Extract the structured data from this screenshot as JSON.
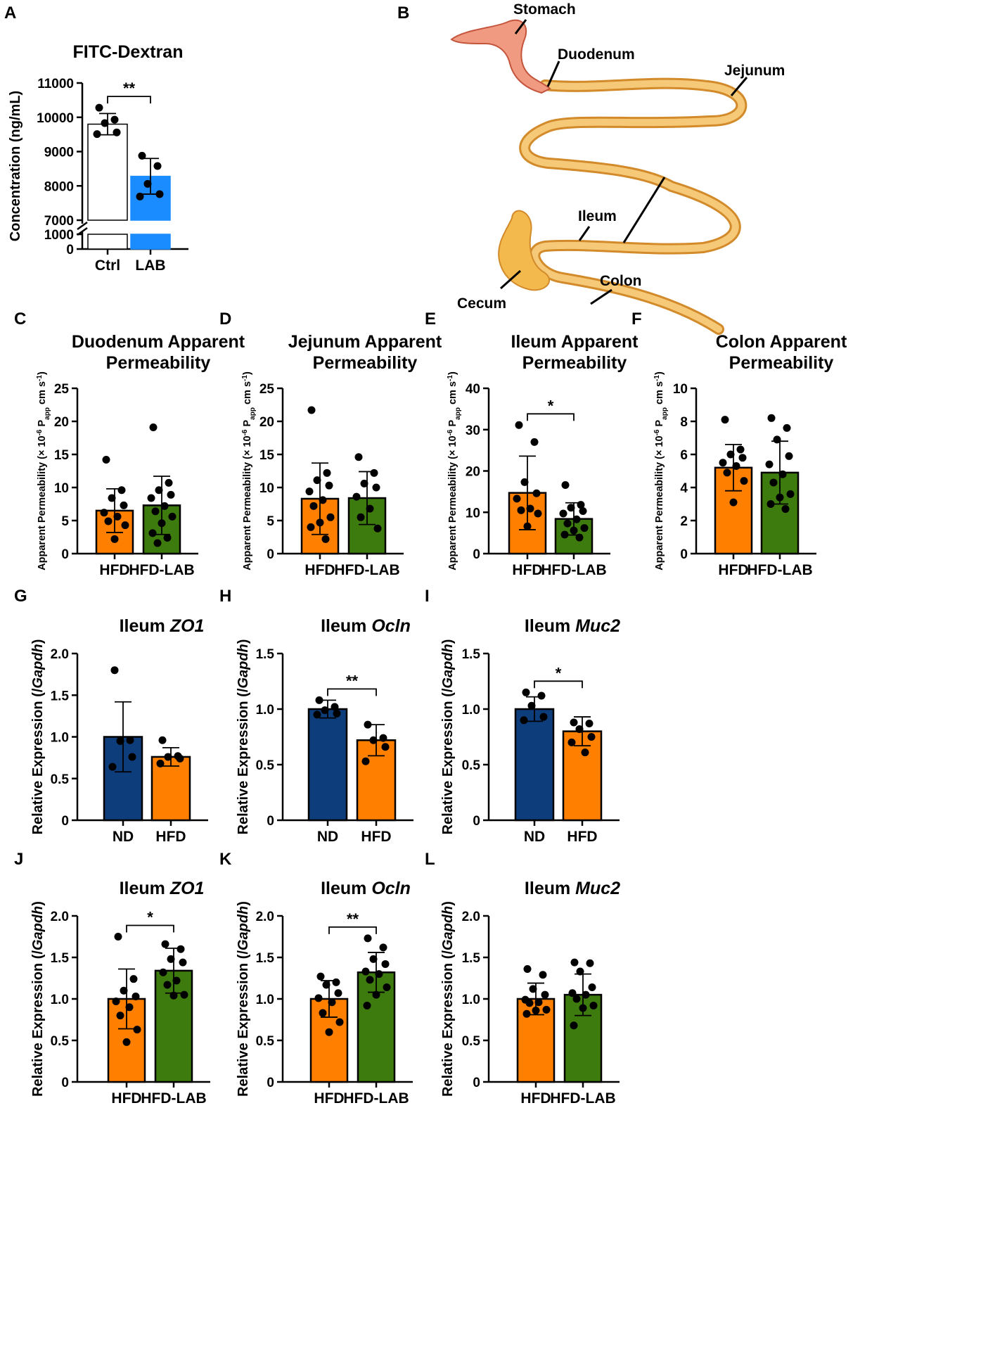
{
  "colors": {
    "ctrl": "#ffffff",
    "lab_blue": "#1a8cff",
    "nd_navy": "#0d3d7a",
    "hfd_orange": "#ff8000",
    "hfdlab_green": "#3e7b0e",
    "stomach": "#f09a82",
    "intestine": "#f6c978",
    "intestine_dark": "#e2a040"
  },
  "panel_b": {
    "label": "B",
    "organs": [
      "Stomach",
      "Duodenum",
      "Jejunum",
      "Ileum",
      "Cecum",
      "Colon"
    ]
  },
  "chart_data": [
    {
      "id": "A",
      "label": "A",
      "type": "bar",
      "title": "FITC-Dextran",
      "ylabel": "Concentration (ng/mL)",
      "categories": [
        "Ctrl",
        "LAB"
      ],
      "values": [
        9800,
        8280
      ],
      "error": [
        310,
        520
      ],
      "points": [
        [
          10280,
          9930,
          9830,
          9560,
          9510
        ],
        [
          8880,
          8580,
          8060,
          7760,
          7690
        ]
      ],
      "yticks": [
        "11000",
        "10000",
        "9000",
        "8000",
        "7000",
        "1000",
        "0"
      ],
      "axis_break": [
        1000,
        7000
      ],
      "significance": "**",
      "colors": [
        "ctrl",
        "lab_blue"
      ]
    },
    {
      "id": "C",
      "label": "C",
      "type": "bar",
      "title": [
        "Duodenum Apparent",
        "Permeability"
      ],
      "ylabel": [
        "Apparent Permeability (× 10",
        "-6",
        " P",
        "app",
        " cm s",
        "-1",
        ")"
      ],
      "categories": [
        "HFD",
        "HFD-LAB"
      ],
      "ylim": [
        0,
        25
      ],
      "yticks": [
        "0",
        "5",
        "10",
        "15",
        "20",
        "25"
      ],
      "values": [
        6.5,
        7.3
      ],
      "error": [
        3.3,
        4.4
      ],
      "points": [
        [
          14.2,
          9.6,
          8.4,
          7.3,
          6.2,
          5.6,
          4.9,
          4.3,
          2.2
        ],
        [
          19.1,
          10.7,
          9.6,
          8.9,
          8.4,
          7.2,
          6.4,
          5.6,
          4.6,
          3.1,
          2.4,
          1.6
        ]
      ],
      "colors": [
        "hfd_orange",
        "hfdlab_green"
      ]
    },
    {
      "id": "D",
      "label": "D",
      "type": "bar",
      "title": [
        "Jejunum Apparent",
        "Permeability"
      ],
      "ylabel": [
        "Apparent Permeability (× 10",
        "-6",
        " P",
        "app",
        " cm s",
        "-1",
        ")"
      ],
      "categories": [
        "HFD",
        "HFD-LAB"
      ],
      "ylim": [
        0,
        25
      ],
      "yticks": [
        "0",
        "5",
        "10",
        "15",
        "20",
        "25"
      ],
      "values": [
        8.3,
        8.4
      ],
      "error": [
        5.4,
        4.0
      ],
      "points": [
        [
          21.7,
          12.2,
          11.1,
          10.3,
          9.4,
          8.1,
          7.2,
          5.5,
          4.7,
          4.0,
          2.2
        ],
        [
          14.6,
          12.2,
          10.6,
          10.0,
          8.6,
          6.8,
          5.5,
          3.8
        ]
      ],
      "colors": [
        "hfd_orange",
        "hfdlab_green"
      ]
    },
    {
      "id": "E",
      "label": "E",
      "type": "bar",
      "title": [
        "Ileum Apparent",
        "Permeability"
      ],
      "ylabel": [
        "Apparent Permeability (× 10",
        "-6",
        " P",
        "app",
        " cm s",
        "-1",
        ")"
      ],
      "categories": [
        "HFD",
        "HFD-LAB"
      ],
      "ylim": [
        0,
        40
      ],
      "yticks": [
        "0",
        "10",
        "20",
        "30",
        "40"
      ],
      "values": [
        14.7,
        8.4
      ],
      "error": [
        8.9,
        3.9
      ],
      "points": [
        [
          31.1,
          27.0,
          17.3,
          14.6,
          13.3,
          10.9,
          10.5,
          9.7,
          6.6
        ],
        [
          16.6,
          11.8,
          11.1,
          10.3,
          9.7,
          8.3,
          7.3,
          6.2,
          5.6,
          4.6,
          3.9
        ]
      ],
      "significance": "*",
      "colors": [
        "hfd_orange",
        "hfdlab_green"
      ]
    },
    {
      "id": "F",
      "label": "F",
      "type": "bar",
      "title": [
        "Colon Apparent",
        "Permeability"
      ],
      "ylabel": [
        "Apparent Permeability (× 10",
        "-6",
        " P",
        "app",
        " cm s",
        "-1",
        ")"
      ],
      "categories": [
        "HFD",
        "HFD-LAB"
      ],
      "ylim": [
        0,
        10
      ],
      "yticks": [
        "0",
        "2",
        "4",
        "6",
        "8",
        "10"
      ],
      "values": [
        5.2,
        4.9
      ],
      "error": [
        1.4,
        1.9
      ],
      "points": [
        [
          8.1,
          6.3,
          6.0,
          5.8,
          5.5,
          5.3,
          4.9,
          4.4,
          3.1
        ],
        [
          8.2,
          7.6,
          6.9,
          5.9,
          5.4,
          4.8,
          4.3,
          3.6,
          3.4,
          3.0,
          2.7
        ]
      ],
      "colors": [
        "hfd_orange",
        "hfdlab_green"
      ]
    },
    {
      "id": "G",
      "label": "G",
      "type": "bar",
      "title": [
        "Ileum ",
        "ZO1"
      ],
      "ylabel": [
        "Relative Expression (/",
        "Gapdh",
        ")"
      ],
      "categories": [
        "ND",
        "HFD"
      ],
      "ylim": [
        0,
        2.0
      ],
      "yticks": [
        "0",
        "0.5",
        "1.0",
        "1.5",
        "2.0"
      ],
      "values": [
        1.0,
        0.76
      ],
      "error": [
        0.42,
        0.11
      ],
      "points": [
        [
          1.8,
          0.96,
          0.95,
          0.76,
          0.64
        ],
        [
          0.96,
          0.77,
          0.76,
          0.74,
          0.68
        ]
      ],
      "colors": [
        "nd_navy",
        "hfd_orange"
      ]
    },
    {
      "id": "H",
      "label": "H",
      "type": "bar",
      "title": [
        "Ileum ",
        "Ocln"
      ],
      "ylabel": [
        "Relative Expression (/",
        "Gapdh",
        ")"
      ],
      "categories": [
        "ND",
        "HFD"
      ],
      "ylim": [
        0,
        1.5
      ],
      "yticks": [
        "0",
        "0.5",
        "1.0",
        "1.5"
      ],
      "values": [
        1.0,
        0.72
      ],
      "error": [
        0.08,
        0.14
      ],
      "points": [
        [
          1.08,
          1.02,
          0.99,
          0.96,
          0.95
        ],
        [
          0.86,
          0.74,
          0.72,
          0.66,
          0.53
        ]
      ],
      "significance": "**",
      "colors": [
        "nd_navy",
        "hfd_orange"
      ]
    },
    {
      "id": "I",
      "label": "I",
      "type": "bar",
      "title": [
        "Ileum ",
        "Muc2"
      ],
      "ylabel": [
        "Relative Expression (/",
        "Gapdh",
        ")"
      ],
      "categories": [
        "ND",
        "HFD"
      ],
      "ylim": [
        0,
        1.5
      ],
      "yticks": [
        "0",
        "0.5",
        "1.0",
        "1.5"
      ],
      "values": [
        1.0,
        0.8
      ],
      "error": [
        0.11,
        0.13
      ],
      "points": [
        [
          1.15,
          1.12,
          1.03,
          0.93,
          0.9
        ],
        [
          0.88,
          0.87,
          0.82,
          0.75,
          0.7,
          0.61
        ]
      ],
      "significance": "*",
      "colors": [
        "nd_navy",
        "hfd_orange"
      ]
    },
    {
      "id": "J",
      "label": "J",
      "type": "bar",
      "title": [
        "Ileum ",
        "ZO1"
      ],
      "ylabel": [
        "Relative Expression (/",
        "Gapdh",
        ")"
      ],
      "categories": [
        "HFD",
        "HFD-LAB"
      ],
      "ylim": [
        0,
        2.0
      ],
      "yticks": [
        "0",
        "0.5",
        "1.0",
        "1.5",
        "2.0"
      ],
      "values": [
        1.0,
        1.34
      ],
      "error": [
        0.36,
        0.27
      ],
      "points": [
        [
          1.75,
          1.24,
          1.1,
          1.03,
          0.97,
          0.9,
          0.8,
          0.63,
          0.48
        ],
        [
          1.66,
          1.6,
          1.48,
          1.44,
          1.32,
          1.22,
          1.17,
          1.05,
          1.04
        ]
      ],
      "significance": "*",
      "colors": [
        "hfd_orange",
        "hfdlab_green"
      ]
    },
    {
      "id": "K",
      "label": "K",
      "type": "bar",
      "title": [
        "Ileum ",
        "Ocln"
      ],
      "ylabel": [
        "Relative Expression (/",
        "Gapdh",
        ")"
      ],
      "categories": [
        "HFD",
        "HFD-LAB"
      ],
      "ylim": [
        0,
        2.0
      ],
      "yticks": [
        "0",
        "0.5",
        "1.0",
        "1.5",
        "2.0"
      ],
      "values": [
        1.0,
        1.32
      ],
      "error": [
        0.22,
        0.24
      ],
      "points": [
        [
          1.27,
          1.2,
          1.17,
          1.07,
          1.01,
          0.96,
          0.83,
          0.72,
          0.6
        ],
        [
          1.73,
          1.62,
          1.48,
          1.42,
          1.33,
          1.3,
          1.23,
          1.14,
          1.05,
          0.92
        ]
      ],
      "significance": "**",
      "colors": [
        "hfd_orange",
        "hfdlab_green"
      ]
    },
    {
      "id": "L",
      "label": "L",
      "type": "bar",
      "title": [
        "Ileum ",
        "Muc2"
      ],
      "ylabel": [
        "Relative Expression (/",
        "Gapdh",
        ")"
      ],
      "categories": [
        "HFD",
        "HFD-LAB"
      ],
      "ylim": [
        0,
        2.0
      ],
      "yticks": [
        "0",
        "0.5",
        "1.0",
        "1.5",
        "2.0"
      ],
      "values": [
        1.0,
        1.05
      ],
      "error": [
        0.19,
        0.25
      ],
      "points": [
        [
          1.36,
          1.29,
          1.12,
          1.05,
          0.99,
          0.96,
          0.95,
          0.87,
          0.86,
          0.82
        ],
        [
          1.44,
          1.43,
          1.33,
          1.14,
          1.07,
          1.05,
          1.0,
          0.92,
          0.89,
          0.68
        ]
      ],
      "colors": [
        "hfd_orange",
        "hfdlab_green"
      ]
    }
  ]
}
